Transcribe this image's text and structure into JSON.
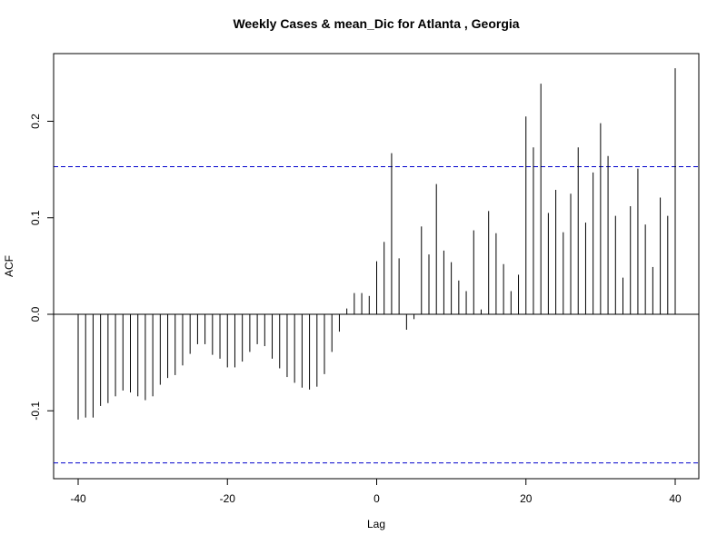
{
  "chart_data": {
    "type": "bar",
    "title": "Weekly Cases & mean_Dic for Atlanta , Georgia",
    "xlabel": "Lag",
    "ylabel": "ACF",
    "xlim": [
      -40,
      40
    ],
    "ylim": [
      -0.16,
      0.26
    ],
    "x_ticks": [
      {
        "value": -40,
        "label": "-40"
      },
      {
        "value": -20,
        "label": "-20"
      },
      {
        "value": 0,
        "label": "0"
      },
      {
        "value": 20,
        "label": "20"
      },
      {
        "value": 40,
        "label": "40"
      }
    ],
    "y_ticks": [
      {
        "value": -0.1,
        "label": "-0.1"
      },
      {
        "value": 0.0,
        "label": "0.0"
      },
      {
        "value": 0.1,
        "label": "0.1"
      },
      {
        "value": 0.2,
        "label": "0.2"
      }
    ],
    "confidence_bounds": [
      0.153,
      -0.154
    ],
    "confidence_color": "#0000cc",
    "bar_color": "#000000",
    "lags": [
      -40,
      -39,
      -38,
      -37,
      -36,
      -35,
      -34,
      -33,
      -32,
      -31,
      -30,
      -29,
      -28,
      -27,
      -26,
      -25,
      -24,
      -23,
      -22,
      -21,
      -20,
      -19,
      -18,
      -17,
      -16,
      -15,
      -14,
      -13,
      -12,
      -11,
      -10,
      -9,
      -8,
      -7,
      -6,
      -5,
      -4,
      -3,
      -2,
      -1,
      0,
      1,
      2,
      3,
      4,
      5,
      6,
      7,
      8,
      9,
      10,
      11,
      12,
      13,
      14,
      15,
      16,
      17,
      18,
      19,
      20,
      21,
      22,
      23,
      24,
      25,
      26,
      27,
      28,
      29,
      30,
      31,
      32,
      33,
      34,
      35,
      36,
      37,
      38,
      39,
      40
    ],
    "values": [
      -0.109,
      -0.107,
      -0.107,
      -0.095,
      -0.092,
      -0.085,
      -0.079,
      -0.081,
      -0.085,
      -0.089,
      -0.085,
      -0.073,
      -0.066,
      -0.063,
      -0.053,
      -0.041,
      -0.031,
      -0.031,
      -0.042,
      -0.046,
      -0.055,
      -0.055,
      -0.049,
      -0.039,
      -0.031,
      -0.033,
      -0.046,
      -0.056,
      -0.065,
      -0.071,
      -0.076,
      -0.078,
      -0.075,
      -0.062,
      -0.039,
      -0.018,
      0.006,
      0.022,
      0.022,
      0.019,
      0.055,
      0.075,
      0.167,
      0.058,
      -0.016,
      -0.005,
      0.091,
      0.062,
      0.135,
      0.066,
      0.054,
      0.035,
      0.024,
      0.087,
      0.005,
      0.107,
      0.084,
      0.052,
      0.024,
      0.041,
      0.205,
      0.173,
      0.239,
      0.105,
      0.129,
      0.085,
      0.125,
      0.173,
      0.095,
      0.147,
      0.198,
      0.164,
      0.102,
      0.038,
      0.112,
      0.151,
      0.093,
      0.049,
      0.121,
      0.102,
      0.255
    ],
    "grid": false,
    "legend": "none"
  }
}
